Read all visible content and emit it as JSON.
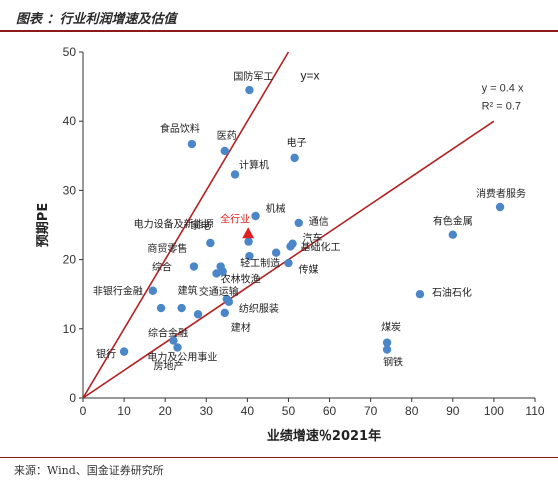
{
  "header": {
    "title": "图表   ：行业利润增速及估值"
  },
  "source": "来源：Wind、国金证券研究所",
  "chart_data": {
    "type": "scatter",
    "xlabel": "业绩增速％2021年",
    "ylabel": "预期PE",
    "xlim": [
      0,
      110
    ],
    "ylim": [
      0,
      50
    ],
    "xticks": [
      0,
      10,
      20,
      30,
      40,
      50,
      60,
      70,
      80,
      90,
      100,
      110
    ],
    "yticks": [
      0,
      10,
      20,
      30,
      40,
      50
    ],
    "grid": false,
    "points": [
      {
        "label": "国防军工",
        "x": 40.5,
        "y": 44.5
      },
      {
        "label": "食品饮料",
        "x": 26.5,
        "y": 36.7
      },
      {
        "label": "医药",
        "x": 34.5,
        "y": 35.7
      },
      {
        "label": "电子",
        "x": 51.5,
        "y": 34.7
      },
      {
        "label": "计算机",
        "x": 37.0,
        "y": 32.3
      },
      {
        "label": "机械",
        "x": 42.0,
        "y": 26.3
      },
      {
        "label": "通信",
        "x": 52.5,
        "y": 25.3
      },
      {
        "label": "电力设备及新能源",
        "x": 40.3,
        "y": 22.6
      },
      {
        "label": "家电",
        "x": 31.0,
        "y": 22.4
      },
      {
        "label": "汽车",
        "x": 51.0,
        "y": 22.3
      },
      {
        "label": "基础化工",
        "x": 50.5,
        "y": 21.9
      },
      {
        "label": "商贸零售",
        "x": 40.5,
        "y": 20.5
      },
      {
        "label": "综合",
        "x": 27.0,
        "y": 19.0
      },
      {
        "label": "农林牧渔",
        "x": 33.5,
        "y": 19.0
      },
      {
        "label": "传媒",
        "x": 50.0,
        "y": 19.5
      },
      {
        "label": "轻工制造",
        "x": 47.0,
        "y": 21.0
      },
      {
        "label": "",
        "x": 32.5,
        "y": 18.0
      },
      {
        "label": "",
        "x": 34.0,
        "y": 18.3
      },
      {
        "label": "非银行金融",
        "x": 17.0,
        "y": 15.5
      },
      {
        "label": "交通运输",
        "x": 35.0,
        "y": 14.3
      },
      {
        "label": "纺织服装",
        "x": 35.5,
        "y": 13.9
      },
      {
        "label": "建筑",
        "x": 24.0,
        "y": 13.0
      },
      {
        "label": "",
        "x": 19.0,
        "y": 13.0
      },
      {
        "label": "综合金融",
        "x": 28.0,
        "y": 12.1
      },
      {
        "label": "建材",
        "x": 34.5,
        "y": 12.3
      },
      {
        "label": "电力及公用事业",
        "x": 22.0,
        "y": 8.3
      },
      {
        "label": "银行",
        "x": 10.0,
        "y": 6.7
      },
      {
        "label": "房地产",
        "x": 23.0,
        "y": 7.3
      },
      {
        "label": "消费者服务",
        "x": 101.5,
        "y": 27.6
      },
      {
        "label": "有色金属",
        "x": 90.0,
        "y": 23.6
      },
      {
        "label": "石油石化",
        "x": 82.0,
        "y": 15.0
      },
      {
        "label": "煤炭",
        "x": 74.0,
        "y": 8.0
      },
      {
        "label": "钢铁",
        "x": 74.0,
        "y": 7.0
      }
    ],
    "highlight": {
      "label": "全行业",
      "x": 40.2,
      "y": 23.8,
      "color": "#e02020"
    },
    "point_color": "#4a86c8",
    "line_color": "#b22222",
    "lines": [
      {
        "label": "y=x",
        "slope": 1
      },
      {
        "label": "y = 0.4 x",
        "r2_label": "R² = 0.7",
        "slope": 0.4
      }
    ]
  }
}
